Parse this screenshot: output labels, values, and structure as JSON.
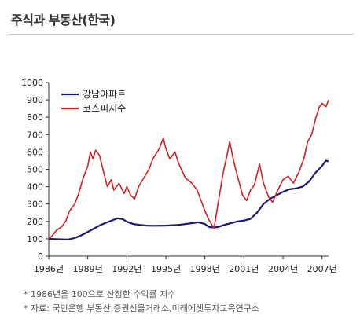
{
  "title": "주식과 부동산(한국)",
  "chart_data": {
    "type": "line",
    "ylim": [
      0,
      1000
    ],
    "yticks": [
      0,
      100,
      200,
      300,
      400,
      500,
      600,
      700,
      800,
      900,
      1000
    ],
    "xlim": [
      1986,
      2007.5
    ],
    "xticks": [
      {
        "value": 1986,
        "label": "1986년"
      },
      {
        "value": 1989,
        "label": "1989년"
      },
      {
        "value": 1992,
        "label": "1992년"
      },
      {
        "value": 1995,
        "label": "1995년"
      },
      {
        "value": 1998,
        "label": "1998년"
      },
      {
        "value": 2001,
        "label": "2001년"
      },
      {
        "value": 2004,
        "label": "2004년"
      },
      {
        "value": 2007,
        "label": "2007년"
      }
    ],
    "grid": false,
    "legend_position": "top-left",
    "series": [
      {
        "name": "강남아파트",
        "color": "#1a1a78",
        "points": [
          [
            1986.0,
            100
          ],
          [
            1986.5,
            98
          ],
          [
            1987.0,
            97
          ],
          [
            1987.5,
            96
          ],
          [
            1988.0,
            105
          ],
          [
            1988.5,
            120
          ],
          [
            1989.0,
            140
          ],
          [
            1989.5,
            160
          ],
          [
            1990.0,
            180
          ],
          [
            1990.5,
            195
          ],
          [
            1991.0,
            210
          ],
          [
            1991.3,
            218
          ],
          [
            1991.7,
            212
          ],
          [
            1992.0,
            198
          ],
          [
            1992.5,
            185
          ],
          [
            1993.0,
            180
          ],
          [
            1993.5,
            176
          ],
          [
            1994.0,
            175
          ],
          [
            1995.0,
            176
          ],
          [
            1996.0,
            180
          ],
          [
            1997.0,
            190
          ],
          [
            1997.5,
            195
          ],
          [
            1998.0,
            185
          ],
          [
            1998.3,
            168
          ],
          [
            1998.7,
            165
          ],
          [
            1999.0,
            168
          ],
          [
            1999.5,
            180
          ],
          [
            2000.0,
            190
          ],
          [
            2000.5,
            200
          ],
          [
            2001.0,
            205
          ],
          [
            2001.5,
            215
          ],
          [
            2002.0,
            250
          ],
          [
            2002.5,
            300
          ],
          [
            2003.0,
            330
          ],
          [
            2003.5,
            350
          ],
          [
            2004.0,
            370
          ],
          [
            2004.5,
            385
          ],
          [
            2005.0,
            390
          ],
          [
            2005.5,
            400
          ],
          [
            2006.0,
            430
          ],
          [
            2006.5,
            480
          ],
          [
            2007.0,
            520
          ],
          [
            2007.3,
            550
          ],
          [
            2007.5,
            545
          ]
        ]
      },
      {
        "name": "코스피지수",
        "color": "#d42020",
        "points": [
          [
            1986.0,
            100
          ],
          [
            1986.3,
            120
          ],
          [
            1986.6,
            150
          ],
          [
            1987.0,
            170
          ],
          [
            1987.3,
            200
          ],
          [
            1987.6,
            260
          ],
          [
            1988.0,
            300
          ],
          [
            1988.3,
            360
          ],
          [
            1988.6,
            440
          ],
          [
            1989.0,
            520
          ],
          [
            1989.2,
            600
          ],
          [
            1989.4,
            560
          ],
          [
            1989.6,
            610
          ],
          [
            1989.9,
            580
          ],
          [
            1990.2,
            490
          ],
          [
            1990.5,
            400
          ],
          [
            1990.8,
            440
          ],
          [
            1991.0,
            380
          ],
          [
            1991.4,
            420
          ],
          [
            1991.8,
            360
          ],
          [
            1992.0,
            400
          ],
          [
            1992.3,
            350
          ],
          [
            1992.6,
            330
          ],
          [
            1992.9,
            400
          ],
          [
            1993.3,
            450
          ],
          [
            1993.7,
            500
          ],
          [
            1994.0,
            560
          ],
          [
            1994.5,
            620
          ],
          [
            1994.8,
            680
          ],
          [
            1995.0,
            620
          ],
          [
            1995.3,
            560
          ],
          [
            1995.7,
            600
          ],
          [
            1996.0,
            530
          ],
          [
            1996.5,
            450
          ],
          [
            1997.0,
            420
          ],
          [
            1997.4,
            380
          ],
          [
            1997.8,
            300
          ],
          [
            1998.0,
            260
          ],
          [
            1998.3,
            210
          ],
          [
            1998.7,
            160
          ],
          [
            1999.0,
            300
          ],
          [
            1999.4,
            480
          ],
          [
            1999.7,
            580
          ],
          [
            1999.9,
            660
          ],
          [
            2000.2,
            550
          ],
          [
            2000.5,
            460
          ],
          [
            2000.9,
            350
          ],
          [
            2001.2,
            320
          ],
          [
            2001.5,
            380
          ],
          [
            2001.8,
            410
          ],
          [
            2002.2,
            530
          ],
          [
            2002.5,
            420
          ],
          [
            2002.9,
            340
          ],
          [
            2003.2,
            310
          ],
          [
            2003.6,
            380
          ],
          [
            2004.0,
            440
          ],
          [
            2004.4,
            460
          ],
          [
            2004.8,
            420
          ],
          [
            2005.2,
            480
          ],
          [
            2005.6,
            560
          ],
          [
            2005.9,
            660
          ],
          [
            2006.2,
            700
          ],
          [
            2006.5,
            790
          ],
          [
            2006.8,
            860
          ],
          [
            2007.0,
            880
          ],
          [
            2007.3,
            860
          ],
          [
            2007.5,
            900
          ]
        ]
      }
    ]
  },
  "notes": [
    "* 1986년을 100으로 산정한 수익률 지수",
    "* 자료: 국민은행 부동산,증권선물거래소,미래에셋투자교육연구소"
  ]
}
